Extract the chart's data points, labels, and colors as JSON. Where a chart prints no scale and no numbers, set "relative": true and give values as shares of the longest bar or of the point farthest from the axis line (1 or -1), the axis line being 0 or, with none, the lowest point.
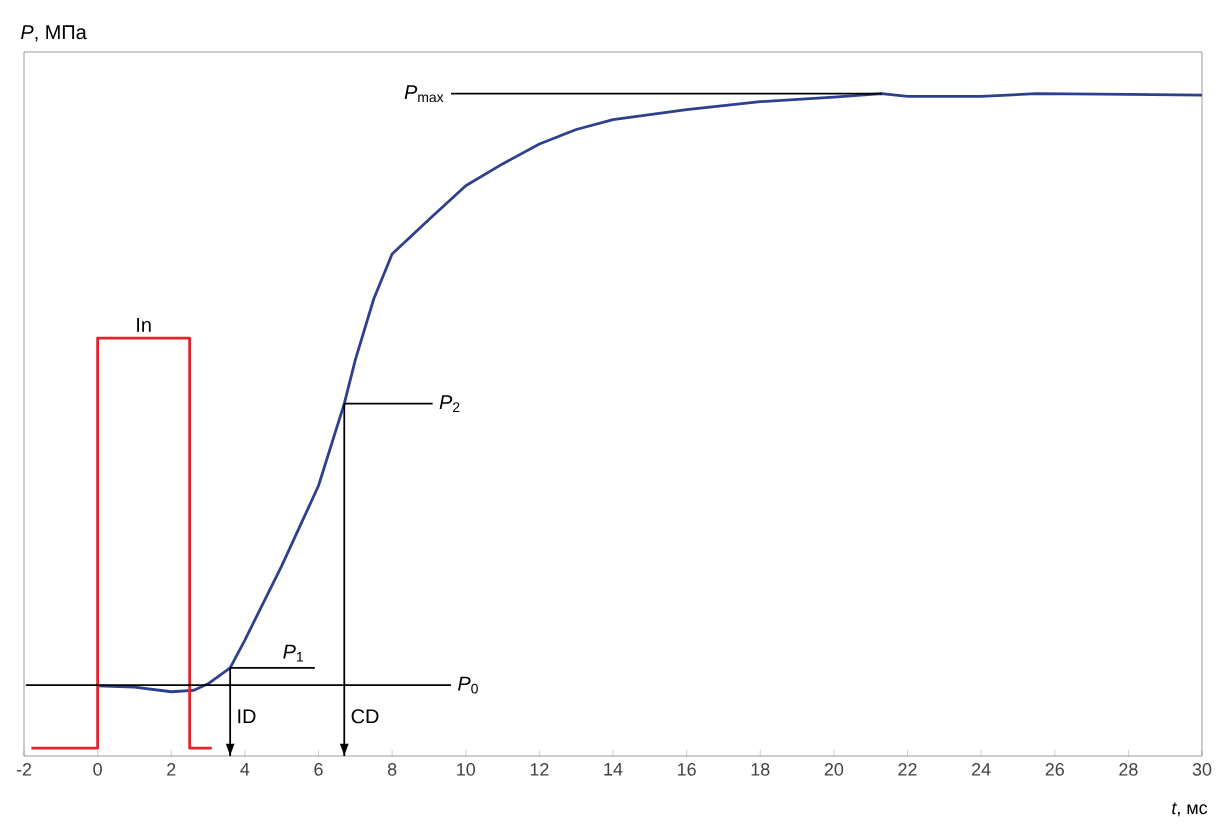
{
  "chart_data": {
    "type": "line",
    "relative": true,
    "ylabel": "*P*, МПа",
    "xlabel": "*t*, мс",
    "xlim": [
      -2,
      30
    ],
    "xticks": [
      -2,
      0,
      2,
      4,
      6,
      8,
      10,
      12,
      14,
      16,
      18,
      20,
      22,
      24,
      26,
      28,
      30
    ],
    "tick_labels": "x",
    "grid": false,
    "series": [
      {
        "color": "#2e3f8f",
        "x": [
          0,
          1,
          2,
          2.6,
          3,
          3.6,
          4,
          5,
          6,
          6.7,
          7,
          7.5,
          8,
          9,
          10,
          11,
          12,
          13,
          14,
          16,
          18,
          20,
          21.3,
          22,
          24,
          25.5,
          28,
          30
        ],
        "values": [
          0.106,
          0.104,
          0.097,
          0.099,
          0.109,
          0.133,
          0.175,
          0.287,
          0.408,
          0.532,
          0.598,
          0.69,
          0.758,
          0.81,
          0.861,
          0.894,
          0.924,
          0.946,
          0.961,
          0.976,
          0.988,
          0.995,
          1.0,
          0.996,
          0.996,
          1.0,
          0.999,
          0.998
        ]
      },
      {
        "name": "In",
        "color": "#e0262b",
        "x": [
          -1.8,
          0,
          0,
          2.5,
          2.5,
          3.1
        ],
        "values": [
          0.012,
          0.012,
          0.631,
          0.631,
          0.012,
          0.012
        ]
      },
      {
        "name": "*P*$_{0}$",
        "color": "#000000",
        "x": [
          -1.95,
          9.6
        ],
        "values": [
          0.107,
          0.107
        ]
      },
      {
        "name": "*P*$_{1}$",
        "color": "#000000",
        "x": [
          3.6,
          5.9
        ],
        "values": [
          0.133,
          0.133
        ]
      },
      {
        "name": "*P*$_{2}$",
        "color": "#000000",
        "x": [
          6.7,
          9.1
        ],
        "values": [
          0.532,
          0.532
        ]
      },
      {
        "name": "*P*$_{max}$",
        "color": "#000000",
        "x": [
          9.6,
          21.3
        ],
        "values": [
          1.0,
          1.0
        ]
      },
      {
        "name": "ID",
        "color": "#000000",
        "x": [
          3.6,
          3.6
        ],
        "values": [
          0.133,
          0
        ]
      },
      {
        "name": "CD",
        "color": "#000000",
        "x": [
          6.7,
          6.7
        ],
        "values": [
          0.532,
          0
        ]
      }
    ]
  }
}
